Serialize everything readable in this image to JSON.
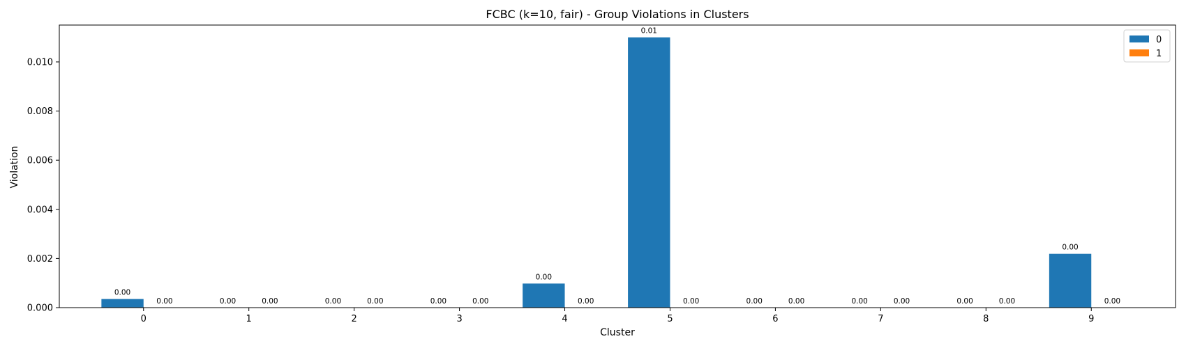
{
  "chart_data": {
    "type": "bar",
    "title": "FCBC (k=10, fair) - Group Violations in Clusters",
    "xlabel": "Cluster",
    "ylabel": "Violation",
    "categories": [
      "0",
      "1",
      "2",
      "3",
      "4",
      "5",
      "6",
      "7",
      "8",
      "9"
    ],
    "ylim": [
      0,
      0.0115
    ],
    "yticks": [
      "0.000",
      "0.002",
      "0.004",
      "0.006",
      "0.008",
      "0.010"
    ],
    "grid": false,
    "legend_position": "top-right",
    "series": [
      {
        "name": "0",
        "color": "#1f77b4",
        "values": [
          0.00035,
          0.0,
          0.0,
          0.0,
          0.00098,
          0.011,
          0.0,
          0.0,
          0.0,
          0.00219
        ],
        "labels": [
          "0.00",
          "0.00",
          "0.00",
          "0.00",
          "0.00",
          "0.01",
          "0.00",
          "0.00",
          "0.00",
          "0.00"
        ]
      },
      {
        "name": "1",
        "color": "#ff7f0e",
        "values": [
          0,
          0,
          0,
          0,
          0,
          0,
          0,
          0,
          0,
          0
        ],
        "labels": [
          "0.00",
          "0.00",
          "0.00",
          "0.00",
          "0.00",
          "0.00",
          "0.00",
          "0.00",
          "0.00",
          "0.00"
        ]
      }
    ]
  }
}
